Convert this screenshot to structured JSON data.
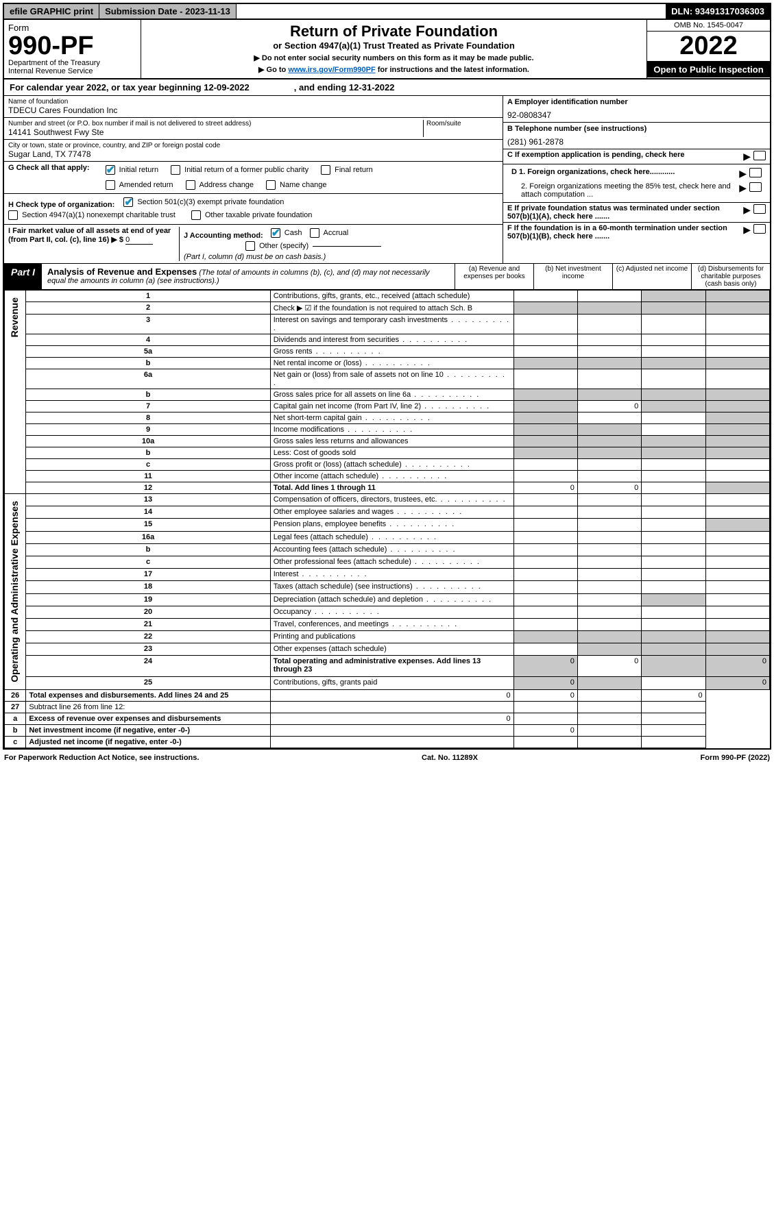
{
  "topbar": {
    "efile": "efile GRAPHIC print",
    "subdate_label": "Submission Date - 2023-11-13",
    "dln": "DLN: 93491317036303"
  },
  "header": {
    "form_prefix": "Form",
    "form_number": "990-PF",
    "dept": "Department of the Treasury",
    "irs": "Internal Revenue Service",
    "title": "Return of Private Foundation",
    "subtitle": "or Section 4947(a)(1) Trust Treated as Private Foundation",
    "note1": "▶ Do not enter social security numbers on this form as it may be made public.",
    "note2_pre": "▶ Go to ",
    "note2_link": "www.irs.gov/Form990PF",
    "note2_post": " for instructions and the latest information.",
    "omb": "OMB No. 1545-0047",
    "year": "2022",
    "open_public": "Open to Public Inspection"
  },
  "calendar_year": {
    "text_pre": "For calendar year 2022, or tax year beginning ",
    "begin": "12-09-2022",
    "text_mid": " , and ending ",
    "end": "12-31-2022"
  },
  "foundation": {
    "name_label": "Name of foundation",
    "name": "TDECU Cares Foundation Inc",
    "addr_label": "Number and street (or P.O. box number if mail is not delivered to street address)",
    "room_label": "Room/suite",
    "street": "14141 Southwest Fwy Ste",
    "city_label": "City or town, state or province, country, and ZIP or foreign postal code",
    "city": "Sugar Land, TX  77478",
    "ein_label": "A Employer identification number",
    "ein": "92-0808347",
    "phone_label": "B Telephone number (see instructions)",
    "phone": "(281) 961-2878",
    "c_label": "C If exemption application is pending, check here",
    "d1_label": "D 1. Foreign organizations, check here............",
    "d2_label": "2. Foreign organizations meeting the 85% test, check here and attach computation ...",
    "e_label": "E  If private foundation status was terminated under section 507(b)(1)(A), check here .......",
    "f_label": "F  If the foundation is in a 60-month termination under section 507(b)(1)(B), check here .......",
    "g_label": "G Check all that apply:",
    "g_opts": [
      "Initial return",
      "Initial return of a former public charity",
      "Final return",
      "Amended return",
      "Address change",
      "Name change"
    ],
    "h_label": "H Check type of organization:",
    "h_opts": [
      "Section 501(c)(3) exempt private foundation",
      "Section 4947(a)(1) nonexempt charitable trust",
      "Other taxable private foundation"
    ],
    "i_label": "I Fair market value of all assets at end of year (from Part II, col. (c), line 16) ▶ $",
    "i_value": "0",
    "j_label": "J Accounting method:",
    "j_opts": [
      "Cash",
      "Accrual",
      "Other (specify)"
    ],
    "j_note": "(Part I, column (d) must be on cash basis.)"
  },
  "part1": {
    "tag": "Part I",
    "title": "Analysis of Revenue and Expenses",
    "note": "(The total of amounts in columns (b), (c), and (d) may not necessarily equal the amounts in column (a) (see instructions).)",
    "col_a": "(a)  Revenue and expenses per books",
    "col_b": "(b)  Net investment income",
    "col_c": "(c)  Adjusted net income",
    "col_d": "(d)  Disbursements for charitable purposes (cash basis only)",
    "vert_revenue": "Revenue",
    "vert_expenses": "Operating and Administrative Expenses",
    "rows": [
      {
        "n": "1",
        "d": "Contributions, gifts, grants, etc., received (attach schedule)"
      },
      {
        "n": "2",
        "d": "Check ▶ ☑ if the foundation is not required to attach Sch. B"
      },
      {
        "n": "3",
        "d": "Interest on savings and temporary cash investments"
      },
      {
        "n": "4",
        "d": "Dividends and interest from securities"
      },
      {
        "n": "5a",
        "d": "Gross rents"
      },
      {
        "n": "b",
        "d": "Net rental income or (loss)"
      },
      {
        "n": "6a",
        "d": "Net gain or (loss) from sale of assets not on line 10"
      },
      {
        "n": "b",
        "d": "Gross sales price for all assets on line 6a"
      },
      {
        "n": "7",
        "d": "Capital gain net income (from Part IV, line 2)",
        "b": "0"
      },
      {
        "n": "8",
        "d": "Net short-term capital gain"
      },
      {
        "n": "9",
        "d": "Income modifications"
      },
      {
        "n": "10a",
        "d": "Gross sales less returns and allowances"
      },
      {
        "n": "b",
        "d": "Less: Cost of goods sold"
      },
      {
        "n": "c",
        "d": "Gross profit or (loss) (attach schedule)"
      },
      {
        "n": "11",
        "d": "Other income (attach schedule)"
      },
      {
        "n": "12",
        "d": "Total. Add lines 1 through 11",
        "bold": true,
        "a": "0",
        "b": "0"
      },
      {
        "n": "13",
        "d": "Compensation of officers, directors, trustees, etc."
      },
      {
        "n": "14",
        "d": "Other employee salaries and wages"
      },
      {
        "n": "15",
        "d": "Pension plans, employee benefits"
      },
      {
        "n": "16a",
        "d": "Legal fees (attach schedule)"
      },
      {
        "n": "b",
        "d": "Accounting fees (attach schedule)"
      },
      {
        "n": "c",
        "d": "Other professional fees (attach schedule)"
      },
      {
        "n": "17",
        "d": "Interest"
      },
      {
        "n": "18",
        "d": "Taxes (attach schedule) (see instructions)"
      },
      {
        "n": "19",
        "d": "Depreciation (attach schedule) and depletion"
      },
      {
        "n": "20",
        "d": "Occupancy"
      },
      {
        "n": "21",
        "d": "Travel, conferences, and meetings"
      },
      {
        "n": "22",
        "d": "Printing and publications"
      },
      {
        "n": "23",
        "d": "Other expenses (attach schedule)"
      },
      {
        "n": "24",
        "d": "Total operating and administrative expenses. Add lines 13 through 23",
        "bold": true,
        "a": "0",
        "b": "0",
        "dv": "0"
      },
      {
        "n": "25",
        "d": "Contributions, gifts, grants paid",
        "a": "0",
        "dv": "0"
      },
      {
        "n": "26",
        "d": "Total expenses and disbursements. Add lines 24 and 25",
        "bold": true,
        "a": "0",
        "b": "0",
        "dv": "0"
      },
      {
        "n": "27",
        "d": "Subtract line 26 from line 12:"
      },
      {
        "n": "a",
        "d": "Excess of revenue over expenses and disbursements",
        "bold": true,
        "a": "0"
      },
      {
        "n": "b",
        "d": "Net investment income (if negative, enter -0-)",
        "bold": true,
        "b": "0"
      },
      {
        "n": "c",
        "d": "Adjusted net income (if negative, enter -0-)",
        "bold": true
      }
    ]
  },
  "footer": {
    "left": "For Paperwork Reduction Act Notice, see instructions.",
    "center": "Cat. No. 11289X",
    "right": "Form 990-PF (2022)"
  },
  "styling": {
    "shaded_bg": "#c8c8c8",
    "link_color": "#0060c0",
    "check_color": "#1890c0",
    "topbar_gray": "#b8b8b8"
  }
}
